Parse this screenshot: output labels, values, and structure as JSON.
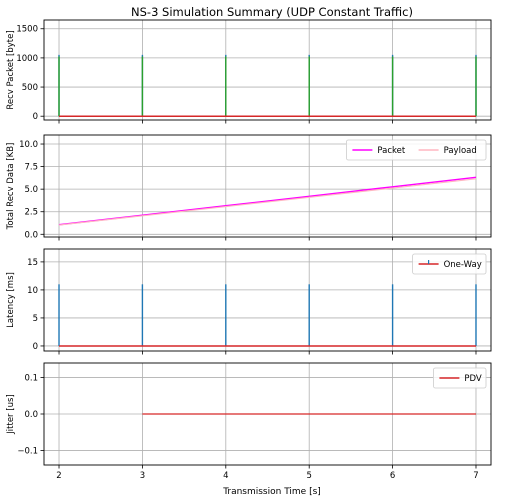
{
  "figure": {
    "title": "NS-3 Simulation Summary (UDP Constant Traffic)",
    "xlabel": "Transmission Time [s]"
  },
  "chart_data": [
    {
      "type": "line",
      "ylabel": "Recv Packet [byte]",
      "xlim": [
        1.82,
        7.18
      ],
      "ylim": [
        -65,
        1650
      ],
      "yticks": [
        0,
        500,
        1000,
        1500
      ],
      "xticks": [
        2,
        3,
        4,
        5,
        6,
        7
      ],
      "grid": true,
      "legend": null,
      "series": [
        {
          "kind": "stem",
          "x": [
            2,
            3,
            4,
            5,
            6,
            7
          ],
          "y": [
            1052,
            1052,
            1052,
            1052,
            1052,
            1052
          ],
          "color": "#1f77b4"
        },
        {
          "kind": "stem",
          "x": [
            2,
            3,
            4,
            5,
            6,
            7
          ],
          "y": [
            1024,
            1024,
            1024,
            1024,
            1024,
            1024
          ],
          "color": "#2ca02c"
        },
        {
          "kind": "baseline",
          "x": [
            2,
            7
          ],
          "y": [
            0,
            0
          ],
          "color": "#d62728"
        }
      ]
    },
    {
      "type": "line",
      "ylabel": "Total Recv Data [KB]",
      "xlim": [
        1.82,
        7.18
      ],
      "ylim": [
        -0.3,
        11.0
      ],
      "yticks": [
        0.0,
        2.5,
        5.0,
        7.5,
        10.0
      ],
      "xticks": [
        2,
        3,
        4,
        5,
        6,
        7
      ],
      "grid": true,
      "legend": {
        "position": "top-right",
        "ncol": 2
      },
      "series": [
        {
          "name": "Packet",
          "kind": "line",
          "x": [
            2,
            3,
            4,
            5,
            6,
            7
          ],
          "y": [
            1.052,
            2.104,
            3.156,
            4.208,
            5.26,
            6.312
          ],
          "color": "#ff00ff",
          "width": 1.5
        },
        {
          "name": "Payload",
          "kind": "line",
          "x": [
            2,
            3,
            4,
            5,
            6,
            7
          ],
          "y": [
            1.024,
            2.048,
            3.072,
            4.096,
            5.12,
            6.144
          ],
          "color": "#ffb6c1",
          "width": 1.2
        }
      ]
    },
    {
      "type": "line",
      "ylabel": "Latency [ms]",
      "xlim": [
        1.82,
        7.18
      ],
      "ylim": [
        -0.9,
        17.3
      ],
      "yticks": [
        0,
        5,
        10,
        15
      ],
      "xticks": [
        2,
        3,
        4,
        5,
        6,
        7
      ],
      "grid": true,
      "legend": {
        "position": "top-right",
        "ncol": 1
      },
      "series": [
        {
          "name": "One-Way",
          "kind": "stem",
          "x": [
            2,
            3,
            4,
            5,
            6,
            7
          ],
          "y": [
            11,
            11,
            11,
            11,
            11,
            11
          ],
          "color": "#1f77b4"
        },
        {
          "kind": "baseline",
          "x": [
            2,
            7
          ],
          "y": [
            0,
            0
          ],
          "color": "#d62728"
        }
      ]
    },
    {
      "type": "line",
      "ylabel": "Jitter [us]",
      "xlim": [
        1.82,
        7.18
      ],
      "ylim": [
        -0.14,
        0.14
      ],
      "yticks": [
        -0.1,
        0.0,
        0.1
      ],
      "xticks": [
        2,
        3,
        4,
        5,
        6,
        7
      ],
      "xticklabels": [
        "2",
        "3",
        "4",
        "5",
        "6",
        "7"
      ],
      "grid": true,
      "legend": {
        "position": "top-right",
        "ncol": 1
      },
      "series": [
        {
          "name": "PDV",
          "kind": "line",
          "x": [
            3,
            4,
            5,
            6,
            7
          ],
          "y": [
            0,
            0,
            0,
            0,
            0
          ],
          "color": "#d62728",
          "width": 1.3
        }
      ]
    }
  ]
}
